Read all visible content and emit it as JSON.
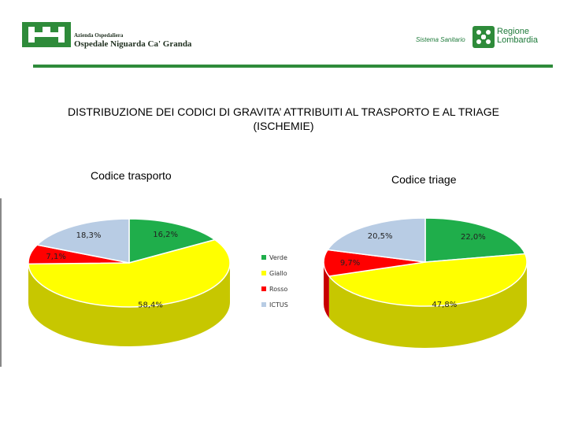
{
  "header": {
    "org_small": "Azienda Ospedaliera",
    "org_name": "Ospedale Niguarda Ca' Granda",
    "sistema": "Sistema Sanitario",
    "region_line1": "Regione",
    "region_line2": "Lombardia",
    "brand_color": "#2e8b3a"
  },
  "title": "DISTRIBUZIONE DEI CODICI DI GRAVITA’ ATTRIBUITI AL TRASPORTO E AL TRIAGE (ISCHEMIE)",
  "chart_data": [
    {
      "type": "pie",
      "title": "Codice trasporto",
      "categories": [
        "Verde",
        "Giallo",
        "Rosso",
        "ICTUS"
      ],
      "values": [
        16.2,
        58.4,
        7.1,
        18.3
      ],
      "labels": [
        "16,2%",
        "58,4%",
        "7,1%",
        "18,3%"
      ],
      "colors": [
        "#1fae4b",
        "#ffff00",
        "#ff0000",
        "#b8cce4"
      ],
      "style": "3d"
    },
    {
      "type": "pie",
      "title": "Codice triage",
      "categories": [
        "Verde",
        "Giallo",
        "Rosso",
        "ICTUS"
      ],
      "values": [
        22.0,
        47.8,
        9.7,
        20.5
      ],
      "labels": [
        "22,0%",
        "47,8%",
        "9,7%",
        "20,5%"
      ],
      "colors": [
        "#1fae4b",
        "#ffff00",
        "#ff0000",
        "#b8cce4"
      ],
      "style": "3d"
    }
  ],
  "legend": [
    "Verde",
    "Giallo",
    "Rosso",
    "ICTUS"
  ]
}
